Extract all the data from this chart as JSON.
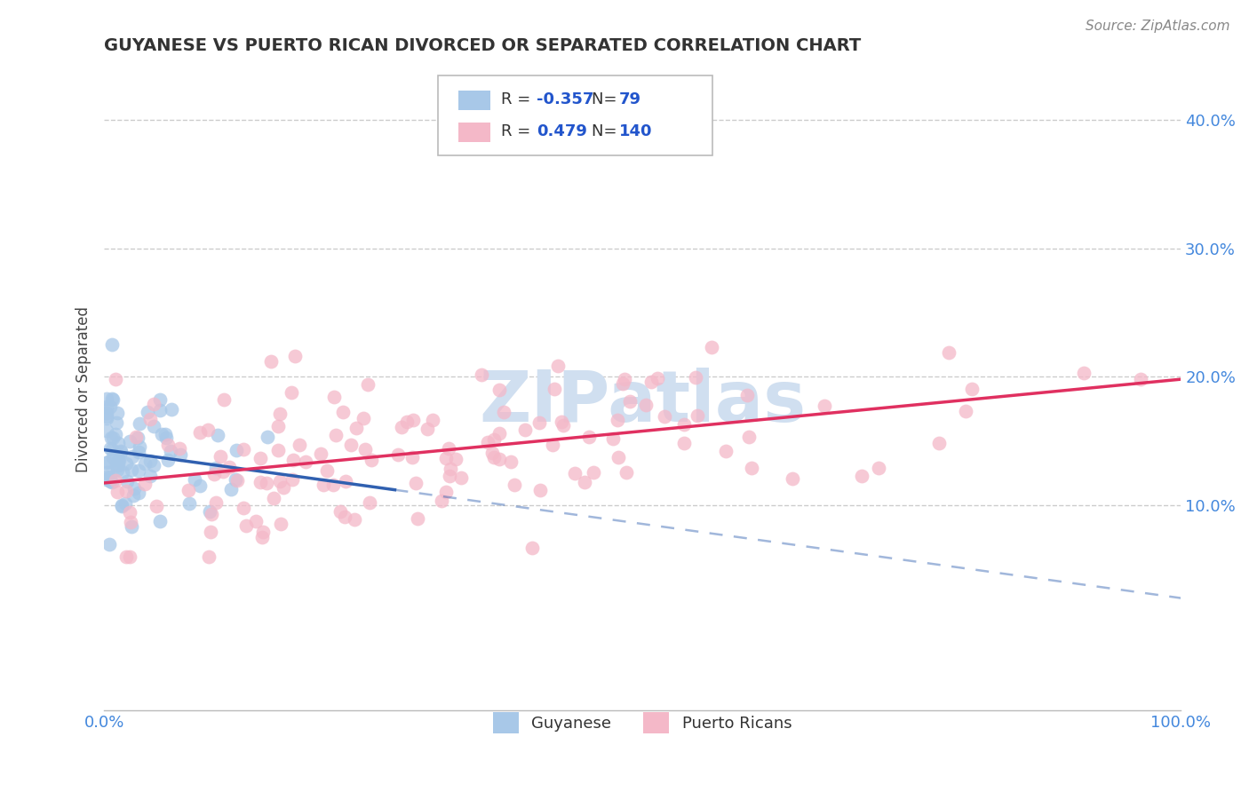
{
  "title": "GUYANESE VS PUERTO RICAN DIVORCED OR SEPARATED CORRELATION CHART",
  "source": "Source: ZipAtlas.com",
  "ylabel": "Divorced or Separated",
  "yticks": [
    "10.0%",
    "20.0%",
    "30.0%",
    "40.0%"
  ],
  "ytick_values": [
    0.1,
    0.2,
    0.3,
    0.4
  ],
  "xlim": [
    0.0,
    1.0
  ],
  "ylim": [
    -0.06,
    0.44
  ],
  "legend_r1": "-0.357",
  "legend_n1": "79",
  "legend_r2": "0.479",
  "legend_n2": "140",
  "color_blue": "#A8C8E8",
  "color_pink": "#F4B8C8",
  "color_blue_line": "#3060B0",
  "color_pink_line": "#E03060",
  "watermark_color": "#D0DFF0",
  "background_color": "#FFFFFF"
}
